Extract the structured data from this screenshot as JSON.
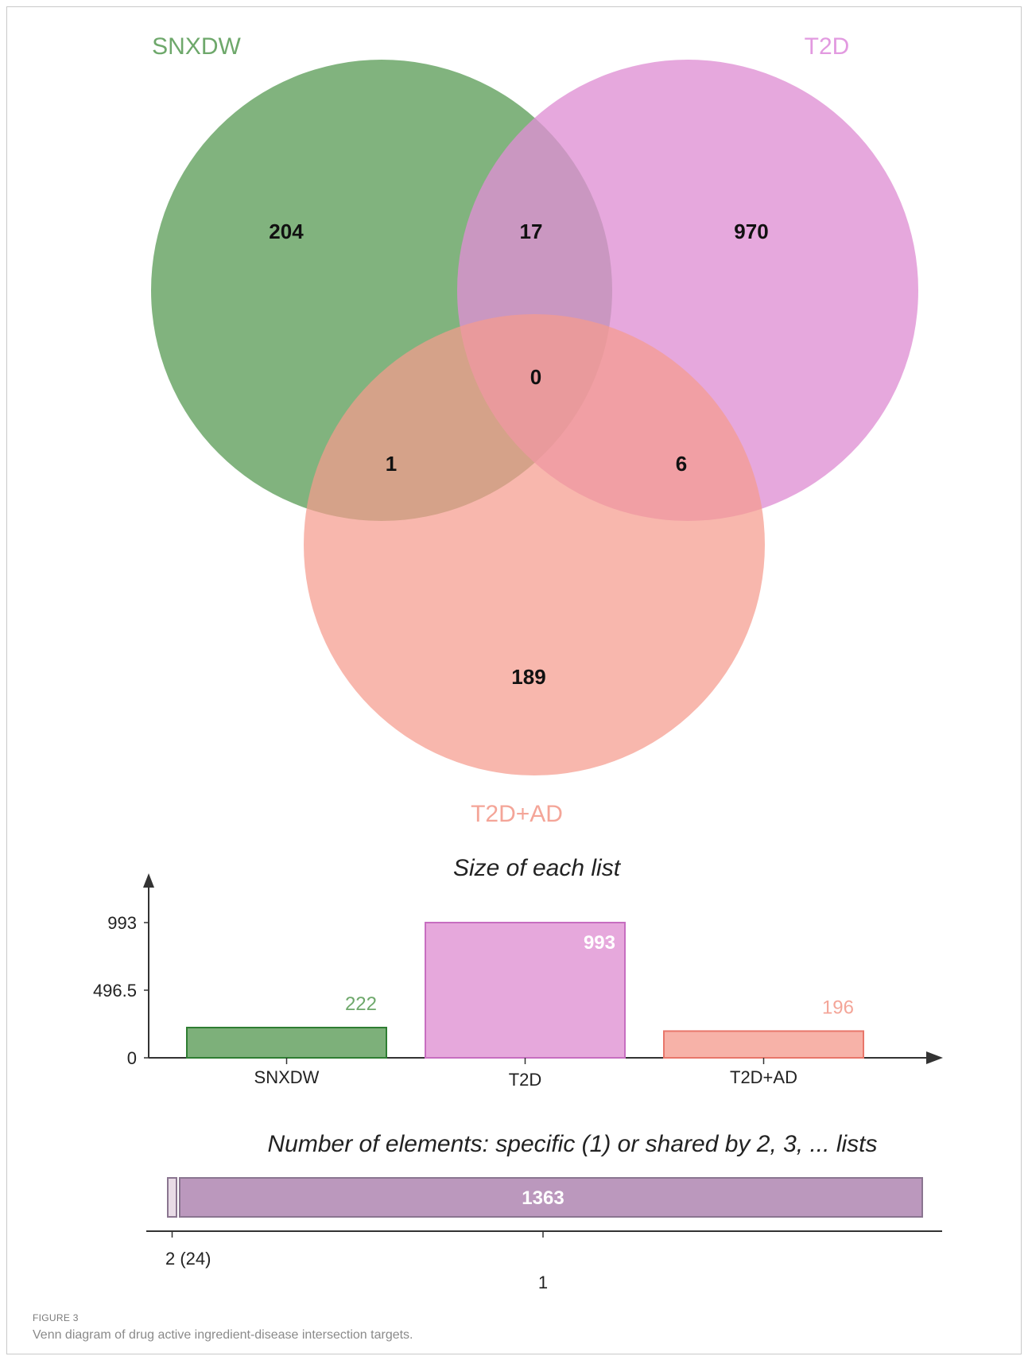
{
  "venn": {
    "sets": [
      {
        "name": "SNXDW",
        "color": "#5d9e5a",
        "label_color": "#6ea86b"
      },
      {
        "name": "T2D",
        "color": "#df8fd3",
        "label_color": "#e29ae0"
      },
      {
        "name": "T2D+AD",
        "color": "#f59b8e",
        "label_color": "#f4a598"
      }
    ],
    "regions": [
      {
        "sets": [
          "SNXDW"
        ],
        "count": "204"
      },
      {
        "sets": [
          "T2D"
        ],
        "count": "970"
      },
      {
        "sets": [
          "T2D+AD"
        ],
        "count": "189"
      },
      {
        "sets": [
          "SNXDW",
          "T2D"
        ],
        "count": "17"
      },
      {
        "sets": [
          "SNXDW",
          "T2D+AD"
        ],
        "count": "1"
      },
      {
        "sets": [
          "T2D",
          "T2D+AD"
        ],
        "count": "6"
      },
      {
        "sets": [
          "SNXDW",
          "T2D",
          "T2D+AD"
        ],
        "count": "0"
      }
    ]
  },
  "chart_data": [
    {
      "type": "bar",
      "title": "Size of each list",
      "categories": [
        "SNXDW",
        "T2D",
        "T2D+AD"
      ],
      "values": [
        222,
        993,
        196
      ],
      "value_labels": [
        "222",
        "993",
        "196"
      ],
      "ylim": [
        0,
        993
      ],
      "yticks": [
        "0",
        "496.5",
        "993"
      ],
      "colors": [
        "#7db07a",
        "#e6a8dc",
        "#f7b2a8"
      ],
      "stroke_colors": [
        "#2e7d32",
        "#c76ec0",
        "#e8766a"
      ],
      "label_colors": [
        "#6ea86b",
        "#ffffff",
        "#f4a598"
      ]
    },
    {
      "type": "bar",
      "title": "Number of elements: specific (1) or shared by 2, 3, ... lists",
      "categories": [
        "2 (24)",
        "1"
      ],
      "values": [
        24,
        1363
      ],
      "value_labels": [
        "",
        "1363"
      ],
      "colors": [
        "#e8dbe6",
        "#bb98bd"
      ],
      "stroke_colors": [
        "#8a7590",
        "#8a7590"
      ]
    }
  ],
  "caption": {
    "label": "FIGURE 3",
    "text": "Venn diagram of drug active ingredient-disease intersection targets."
  }
}
